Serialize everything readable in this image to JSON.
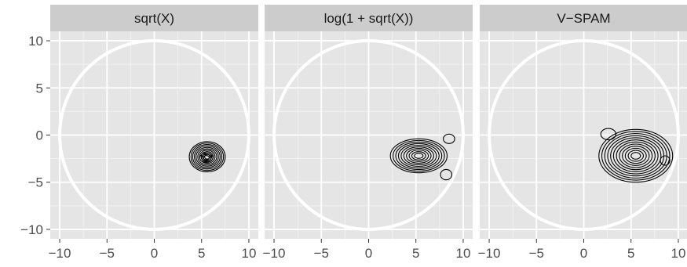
{
  "chart_data": {
    "type": "contour",
    "grid": true,
    "legend": "none",
    "xlim": [
      -11,
      11
    ],
    "ylim": [
      -11,
      11
    ],
    "x_ticks": [
      -10,
      -5,
      0,
      5,
      10
    ],
    "y_ticks": [
      10,
      5,
      0,
      -5,
      -10
    ],
    "x_tick_labels": [
      "−10",
      "−5",
      "0",
      "5",
      "10"
    ],
    "y_tick_labels": [
      "10",
      "5",
      "0",
      "−5",
      "−10"
    ],
    "reference_circle": {
      "center": [
        0,
        0
      ],
      "radius": 10,
      "color": "#ffffff"
    },
    "colors": {
      "panel_background": "#e5e5e5",
      "strip_background": "#cccccc",
      "grid": "#ffffff",
      "contour": "#000000"
    },
    "panels": [
      {
        "label": "sqrt(X)",
        "contours": [
          {
            "name": "main",
            "center": [
              5.6,
              -2.3
            ],
            "rx": 1.9,
            "ry": 1.6,
            "levels": 10
          },
          {
            "name": "core",
            "center": [
              5.5,
              -2.4
            ],
            "rx": 0.7,
            "ry": 0.5,
            "levels": 3
          }
        ]
      },
      {
        "label": "log(1 + sqrt(X))",
        "contours": [
          {
            "name": "main",
            "center": [
              5.3,
              -2.2
            ],
            "rx": 3.0,
            "ry": 1.8,
            "levels": 10
          },
          {
            "name": "blob-upper-right",
            "center": [
              8.5,
              -0.4
            ],
            "rx": 0.6,
            "ry": 0.5,
            "levels": 1
          },
          {
            "name": "blob-lower-right",
            "center": [
              8.2,
              -4.2
            ],
            "rx": 0.6,
            "ry": 0.55,
            "levels": 1
          }
        ]
      },
      {
        "label": "V−SPAM",
        "contours": [
          {
            "name": "main",
            "center": [
              5.5,
              -2.2
            ],
            "rx": 3.9,
            "ry": 2.8,
            "levels": 12
          },
          {
            "name": "blob-upper-left",
            "center": [
              2.6,
              0.1
            ],
            "rx": 0.8,
            "ry": 0.6,
            "levels": 1
          },
          {
            "name": "blob-right",
            "center": [
              8.6,
              -2.7
            ],
            "rx": 0.5,
            "ry": 0.5,
            "levels": 1
          }
        ]
      }
    ]
  }
}
